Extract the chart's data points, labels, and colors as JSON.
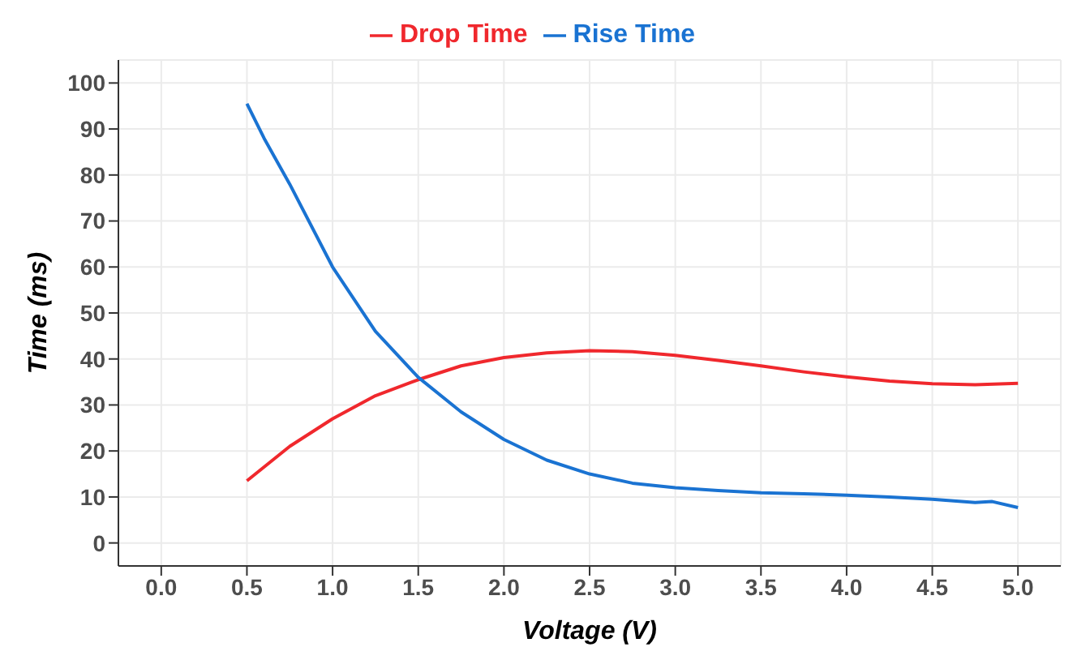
{
  "chart_data": {
    "type": "line",
    "xlabel": "Voltage (V)",
    "ylabel": "Time (ms)",
    "legend": "top",
    "grid": true,
    "marker": "none",
    "line_style": "solid",
    "xlim": [
      -0.25,
      5.25
    ],
    "xticks": [
      {
        "value": 0,
        "label": "0.0"
      },
      {
        "value": 0.5,
        "label": "0.5"
      },
      {
        "value": 1,
        "label": "1.0"
      },
      {
        "value": 1.5,
        "label": "1.5"
      },
      {
        "value": 2,
        "label": "2.0"
      },
      {
        "value": 2.5,
        "label": "2.5"
      },
      {
        "value": 3,
        "label": "3.0"
      },
      {
        "value": 3.5,
        "label": "3.5"
      },
      {
        "value": 4,
        "label": "4.0"
      },
      {
        "value": 4.5,
        "label": "4.5"
      },
      {
        "value": 5,
        "label": "5.0"
      }
    ],
    "ylim": [
      -5,
      105
    ],
    "yticks": [
      0,
      10,
      20,
      30,
      40,
      50,
      60,
      70,
      80,
      90,
      100
    ],
    "series": [
      {
        "name": "Drop Time",
        "color": "#f0282d",
        "x": [
          0.5,
          0.75,
          1,
          1.25,
          1.5,
          1.75,
          2,
          2.25,
          2.5,
          2.75,
          3,
          3.25,
          3.5,
          3.75,
          4,
          4.25,
          4.5,
          4.75,
          5
        ],
        "values": [
          13.5,
          21,
          27,
          32,
          35.5,
          38.5,
          40.3,
          41.3,
          41.8,
          41.6,
          40.8,
          39.7,
          38.5,
          37.2,
          36.1,
          35.2,
          34.6,
          34.4,
          34.7
        ]
      },
      {
        "name": "Rise Time",
        "color": "#1a73d2",
        "x": [
          0.5,
          0.6,
          0.75,
          1,
          1.25,
          1.5,
          1.75,
          2,
          2.25,
          2.5,
          2.75,
          3,
          3.25,
          3.5,
          3.75,
          4,
          4.25,
          4.5,
          4.75,
          4.85,
          5
        ],
        "values": [
          95.5,
          88,
          78,
          60,
          46,
          36,
          28.5,
          22.5,
          18,
          15,
          13,
          12,
          11.4,
          10.9,
          10.7,
          10.4,
          10,
          9.5,
          8.8,
          9,
          7.7
        ]
      }
    ]
  }
}
